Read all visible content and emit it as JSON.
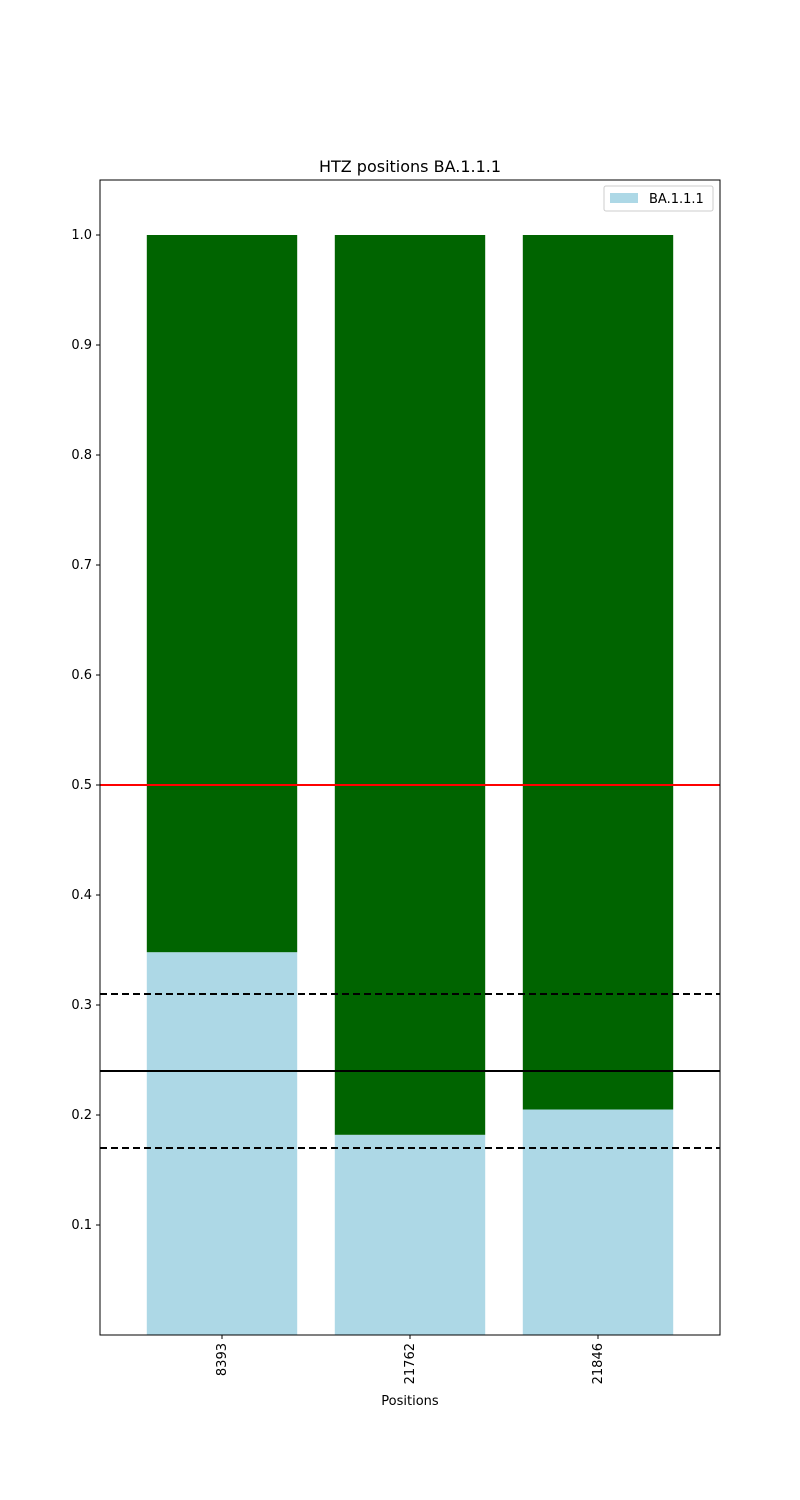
{
  "chart_data": {
    "type": "bar",
    "title": "HTZ positions BA.1.1.1",
    "xlabel": "Positions",
    "ylabel": "",
    "categories": [
      "8393",
      "21762",
      "21846"
    ],
    "series": [
      {
        "name": "BA.1.1.1",
        "values": [
          0.348,
          0.182,
          0.205
        ],
        "color": "#add8e6"
      },
      {
        "values": [
          0.652,
          0.818,
          0.795
        ],
        "color": "#006400"
      }
    ],
    "ylim": [
      0.0,
      1.05
    ],
    "yticks": [
      0.1,
      0.2,
      0.3,
      0.4,
      0.5,
      0.6,
      0.7,
      0.8,
      0.9,
      1.0
    ],
    "ytick_labels": [
      "0.1",
      "0.2",
      "0.3",
      "0.4",
      "0.5",
      "0.6",
      "0.7",
      "0.8",
      "0.9",
      "1.0"
    ],
    "reference_lines": [
      {
        "y": 0.5,
        "color": "#ff0000",
        "style": "solid"
      },
      {
        "y": 0.24,
        "color": "#000000",
        "style": "solid"
      },
      {
        "y": 0.31,
        "color": "#000000",
        "style": "dashed"
      },
      {
        "y": 0.17,
        "color": "#000000",
        "style": "dashed"
      }
    ],
    "legend": {
      "entries": [
        "BA.1.1.1"
      ],
      "position": "top-right"
    },
    "grid": false,
    "x_tick_rotation": "vertical"
  }
}
